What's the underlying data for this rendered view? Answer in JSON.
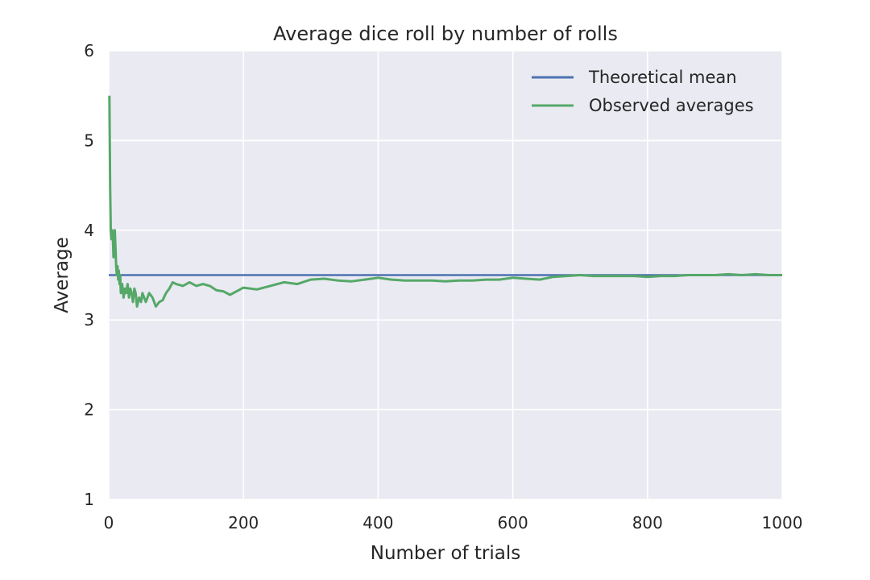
{
  "chart_data": {
    "type": "line",
    "title": "Average dice roll by number of rolls",
    "xlabel": "Number of trials",
    "ylabel": "Average",
    "xlim": [
      0,
      1000
    ],
    "ylim": [
      1,
      6
    ],
    "x_ticks": [
      "0",
      "200",
      "400",
      "600",
      "800",
      "1000"
    ],
    "y_ticks": [
      "1",
      "2",
      "3",
      "4",
      "5",
      "6"
    ],
    "grid": true,
    "legend_position": "top-right",
    "colors": {
      "plot_background": "#eaeaf2",
      "grid": "#ffffff",
      "theoretical": "#4c72b0",
      "observed": "#55a868"
    },
    "series": [
      {
        "name": "Theoretical mean",
        "color": "#4c72b0",
        "x": [
          0,
          1000
        ],
        "y": [
          3.5,
          3.5
        ]
      },
      {
        "name": "Observed averages",
        "color": "#55a868",
        "x": [
          1,
          2,
          3,
          4,
          5,
          6,
          7,
          8,
          9,
          10,
          11,
          12,
          13,
          14,
          15,
          16,
          17,
          18,
          20,
          22,
          24,
          26,
          28,
          30,
          32,
          34,
          36,
          38,
          40,
          42,
          45,
          48,
          50,
          55,
          60,
          65,
          70,
          75,
          80,
          85,
          90,
          95,
          100,
          110,
          120,
          130,
          140,
          150,
          160,
          170,
          180,
          190,
          200,
          220,
          240,
          260,
          280,
          300,
          320,
          340,
          360,
          380,
          400,
          420,
          440,
          460,
          480,
          500,
          520,
          540,
          560,
          580,
          600,
          620,
          640,
          660,
          680,
          700,
          720,
          740,
          760,
          780,
          800,
          820,
          840,
          860,
          880,
          900,
          920,
          940,
          960,
          980,
          1000
        ],
        "y": [
          5.5,
          4.5,
          4.0,
          3.9,
          4.0,
          3.95,
          3.7,
          3.9,
          4.0,
          3.8,
          3.6,
          3.5,
          3.6,
          3.45,
          3.55,
          3.4,
          3.5,
          3.3,
          3.4,
          3.25,
          3.35,
          3.3,
          3.4,
          3.25,
          3.35,
          3.3,
          3.2,
          3.35,
          3.3,
          3.15,
          3.25,
          3.2,
          3.3,
          3.2,
          3.3,
          3.25,
          3.15,
          3.2,
          3.22,
          3.3,
          3.35,
          3.42,
          3.4,
          3.38,
          3.42,
          3.38,
          3.4,
          3.38,
          3.33,
          3.32,
          3.28,
          3.32,
          3.36,
          3.34,
          3.38,
          3.42,
          3.4,
          3.45,
          3.46,
          3.44,
          3.43,
          3.45,
          3.47,
          3.45,
          3.44,
          3.44,
          3.44,
          3.43,
          3.44,
          3.44,
          3.45,
          3.45,
          3.47,
          3.46,
          3.45,
          3.48,
          3.49,
          3.5,
          3.49,
          3.49,
          3.49,
          3.49,
          3.48,
          3.49,
          3.49,
          3.5,
          3.5,
          3.5,
          3.51,
          3.5,
          3.51,
          3.5,
          3.5
        ]
      }
    ]
  }
}
